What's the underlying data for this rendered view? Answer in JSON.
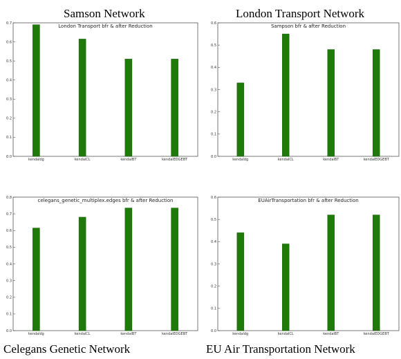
{
  "captions": {
    "top_left": "Samson Network",
    "top_right": "London Transport Network",
    "bottom_left": "Celegans Genetic Network",
    "bottom_right": "EU Air Transportation Network"
  },
  "colors": {
    "bar": "#1f7a0a",
    "frame": "#555555"
  },
  "chart_data": [
    {
      "type": "bar",
      "title": "London Transport  bfr & after Reduction",
      "categories": [
        "kendaldg",
        "kendalCL",
        "kendalBT",
        "kendalEDGEBT"
      ],
      "values": [
        0.69,
        0.615,
        0.51,
        0.51
      ],
      "ylim": [
        0.0,
        0.7
      ],
      "yticks": [
        "0.0",
        "0.1",
        "0.2",
        "0.3",
        "0.4",
        "0.5",
        "0.6",
        "0.7"
      ],
      "xlabel": "",
      "ylabel": "",
      "grid": false
    },
    {
      "type": "bar",
      "title": "Sampson bfr & after Reduction",
      "categories": [
        "kendaldg",
        "kendalCL",
        "kendalBT",
        "kendalEDGEBT"
      ],
      "values": [
        0.33,
        0.55,
        0.48,
        0.48
      ],
      "ylim": [
        0.0,
        0.6
      ],
      "yticks": [
        "0.0",
        "0.1",
        "0.2",
        "0.3",
        "0.4",
        "0.5",
        "0.6"
      ],
      "xlabel": "",
      "ylabel": "",
      "grid": false
    },
    {
      "type": "bar",
      "title": "celegans_genetic_multiplex.edges bfr & after Reduction",
      "categories": [
        "kendaldg",
        "kendalCL",
        "kendalBT",
        "kendalEDGEBT"
      ],
      "values": [
        0.615,
        0.68,
        0.735,
        0.735
      ],
      "ylim": [
        0.0,
        0.8
      ],
      "yticks": [
        "0.0",
        "0.1",
        "0.2",
        "0.3",
        "0.4",
        "0.5",
        "0.6",
        "0.7",
        "0.8"
      ],
      "xlabel": "",
      "ylabel": "",
      "grid": false
    },
    {
      "type": "bar",
      "title": "EUAirTransportation bfr & after Reduction",
      "categories": [
        "kendaldg",
        "kendalCL",
        "kendalBT",
        "kendalEDGEBT"
      ],
      "values": [
        0.44,
        0.39,
        0.52,
        0.52
      ],
      "ylim": [
        0.0,
        0.6
      ],
      "yticks": [
        "0.0",
        "0.1",
        "0.2",
        "0.3",
        "0.4",
        "0.5",
        "0.6"
      ],
      "xlabel": "",
      "ylabel": "",
      "grid": false
    }
  ]
}
